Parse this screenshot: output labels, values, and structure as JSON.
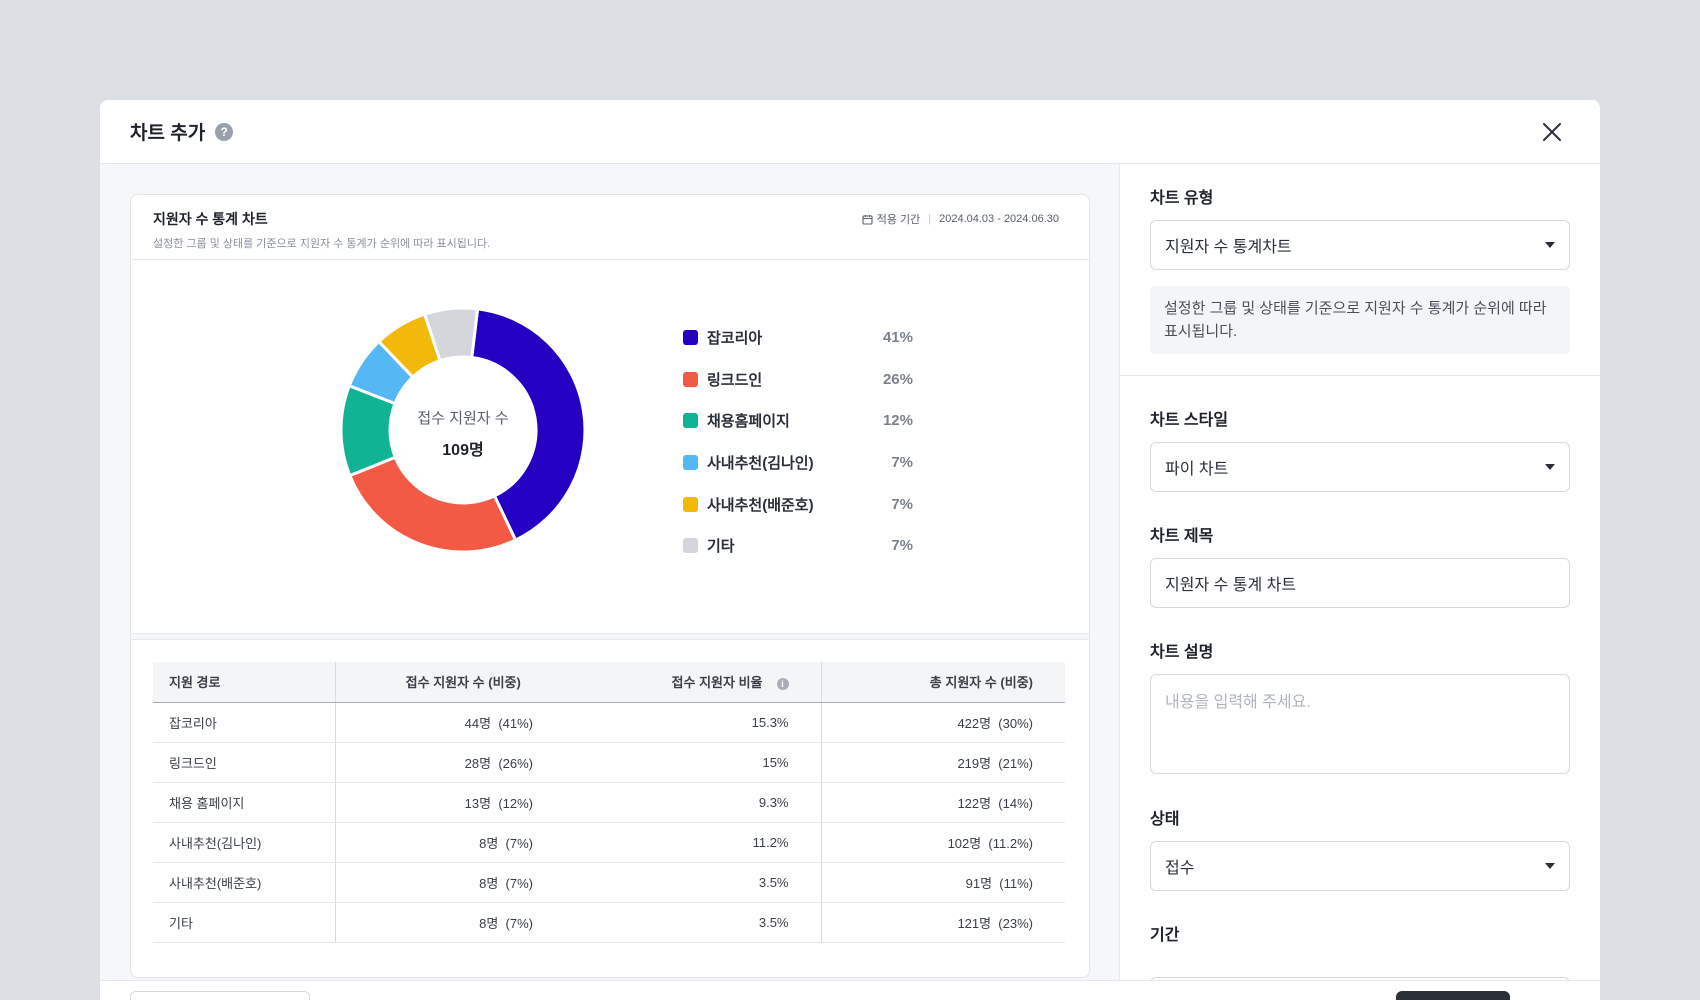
{
  "modal": {
    "title": "차트 추가",
    "help_icon": "?"
  },
  "preview": {
    "title": "지원자 수 통계 차트",
    "description": "설정한 그룹 및 상태를 기준으로 지원자 수 통계가 순위에 따라 표시됩니다.",
    "period_label": "적용 기간",
    "period_value": "2024.04.03 - 2024.06.30",
    "center_label": "접수 지원자 수",
    "center_value": "109명"
  },
  "chart_data": {
    "type": "pie",
    "categories": [
      "잡코리아",
      "링크드인",
      "채용홈페이지",
      "사내추천(김나인)",
      "사내추천(배준호)",
      "기타"
    ],
    "values": [
      41,
      26,
      12,
      7,
      7,
      7
    ],
    "labels": [
      "41%",
      "26%",
      "12%",
      "7%",
      "7%",
      "7%"
    ],
    "colors": [
      "#2300c2",
      "#f25a45",
      "#10b394",
      "#55b7f3",
      "#f2b90a",
      "#d4d6db"
    ],
    "donut": true,
    "legend_position": "right"
  },
  "table": {
    "headers": [
      "지원 경로",
      "접수 지원자 수 (비중)",
      "접수 지원자 비율",
      "총 지원자 수 (비중)"
    ],
    "info_icon": "i",
    "rows": [
      [
        "잡코리아",
        "44명  (41%)",
        "15.3%",
        "422명  (30%)"
      ],
      [
        "링크드인",
        "28명  (26%)",
        "15%",
        "219명  (21%)"
      ],
      [
        "채용 홈페이지",
        "13명  (12%)",
        "9.3%",
        "122명  (14%)"
      ],
      [
        "사내추천(김나인)",
        "8명  (7%)",
        "11.2%",
        "102명  (11.2%)"
      ],
      [
        "사내추천(배준호)",
        "8명  (7%)",
        "3.5%",
        "91명  (11%)"
      ],
      [
        "기타",
        "8명  (7%)",
        "3.5%",
        "121명  (23%)"
      ]
    ]
  },
  "settings": {
    "chart_type_label": "차트 유형",
    "chart_type_value": "지원자 수 통계차트",
    "chart_type_info": "설정한 그룹 및 상태를 기준으로 지원자 수 통계가 순위에 따라 표시됩니다.",
    "chart_style_label": "차트 스타일",
    "chart_style_value": "파이 차트",
    "chart_title_label": "차트 제목",
    "chart_title_value": "지원자 수 통계 차트",
    "chart_desc_label": "차트 설명",
    "chart_desc_placeholder": "내용을 입력해 주세요.",
    "status_label": "상태",
    "status_value": "접수",
    "period_label": "기간"
  }
}
